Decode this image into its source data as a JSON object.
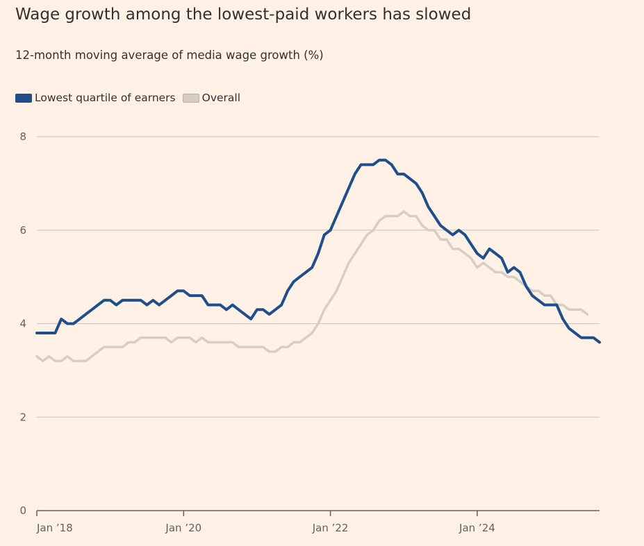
{
  "title": "Wage growth among the lowest-paid workers has slowed",
  "subtitle": "12-month moving average of media wage growth (%)",
  "colors": {
    "background": "#fff1e5",
    "lowest_quartile": "#1f4e8b",
    "overall": "#d6cdc4",
    "gridline": "#cdc3b9",
    "axis": "#66605c"
  },
  "chart_data": {
    "type": "line",
    "title": "Wage growth among the lowest-paid workers has slowed",
    "subtitle": "12-month moving average of media wage growth (%)",
    "xlabel": "",
    "ylabel": "",
    "ylim": [
      0,
      8
    ],
    "yticks": [
      0,
      2,
      4,
      6,
      8
    ],
    "xlim": [
      "2018-01",
      "2025-09"
    ],
    "xticks": [
      {
        "date": "2018-01",
        "label": "Jan ’18"
      },
      {
        "date": "2020-01",
        "label": "Jan ’20"
      },
      {
        "date": "2022-01",
        "label": "Jan ’22"
      },
      {
        "date": "2024-01",
        "label": "Jan ’24"
      }
    ],
    "grid": "horizontal",
    "legend": "top-left",
    "series": [
      {
        "name": "Lowest quartile of earners",
        "color": "#1f4e8b",
        "points": [
          [
            "2018-01",
            3.8
          ],
          [
            "2018-02",
            3.8
          ],
          [
            "2018-03",
            3.8
          ],
          [
            "2018-04",
            3.8
          ],
          [
            "2018-05",
            4.1
          ],
          [
            "2018-06",
            4.0
          ],
          [
            "2018-07",
            4.0
          ],
          [
            "2018-08",
            4.1
          ],
          [
            "2018-09",
            4.2
          ],
          [
            "2018-10",
            4.3
          ],
          [
            "2018-11",
            4.4
          ],
          [
            "2018-12",
            4.5
          ],
          [
            "2019-01",
            4.5
          ],
          [
            "2019-02",
            4.4
          ],
          [
            "2019-03",
            4.5
          ],
          [
            "2019-04",
            4.5
          ],
          [
            "2019-05",
            4.5
          ],
          [
            "2019-06",
            4.5
          ],
          [
            "2019-07",
            4.4
          ],
          [
            "2019-08",
            4.5
          ],
          [
            "2019-09",
            4.4
          ],
          [
            "2019-10",
            4.5
          ],
          [
            "2019-11",
            4.6
          ],
          [
            "2019-12",
            4.7
          ],
          [
            "2020-01",
            4.7
          ],
          [
            "2020-02",
            4.6
          ],
          [
            "2020-03",
            4.6
          ],
          [
            "2020-04",
            4.6
          ],
          [
            "2020-05",
            4.4
          ],
          [
            "2020-06",
            4.4
          ],
          [
            "2020-07",
            4.4
          ],
          [
            "2020-08",
            4.3
          ],
          [
            "2020-09",
            4.4
          ],
          [
            "2020-10",
            4.3
          ],
          [
            "2020-11",
            4.2
          ],
          [
            "2020-12",
            4.1
          ],
          [
            "2021-01",
            4.3
          ],
          [
            "2021-02",
            4.3
          ],
          [
            "2021-03",
            4.2
          ],
          [
            "2021-04",
            4.3
          ],
          [
            "2021-05",
            4.4
          ],
          [
            "2021-06",
            4.7
          ],
          [
            "2021-07",
            4.9
          ],
          [
            "2021-08",
            5.0
          ],
          [
            "2021-09",
            5.1
          ],
          [
            "2021-10",
            5.2
          ],
          [
            "2021-11",
            5.5
          ],
          [
            "2021-12",
            5.9
          ],
          [
            "2022-01",
            6.0
          ],
          [
            "2022-02",
            6.3
          ],
          [
            "2022-03",
            6.6
          ],
          [
            "2022-04",
            6.9
          ],
          [
            "2022-05",
            7.2
          ],
          [
            "2022-06",
            7.4
          ],
          [
            "2022-07",
            7.4
          ],
          [
            "2022-08",
            7.4
          ],
          [
            "2022-09",
            7.5
          ],
          [
            "2022-10",
            7.5
          ],
          [
            "2022-11",
            7.4
          ],
          [
            "2022-12",
            7.2
          ],
          [
            "2023-01",
            7.2
          ],
          [
            "2023-02",
            7.1
          ],
          [
            "2023-03",
            7.0
          ],
          [
            "2023-04",
            6.8
          ],
          [
            "2023-05",
            6.5
          ],
          [
            "2023-06",
            6.3
          ],
          [
            "2023-07",
            6.1
          ],
          [
            "2023-08",
            6.0
          ],
          [
            "2023-09",
            5.9
          ],
          [
            "2023-10",
            6.0
          ],
          [
            "2023-11",
            5.9
          ],
          [
            "2023-12",
            5.7
          ],
          [
            "2024-01",
            5.5
          ],
          [
            "2024-02",
            5.4
          ],
          [
            "2024-03",
            5.6
          ],
          [
            "2024-04",
            5.5
          ],
          [
            "2024-05",
            5.4
          ],
          [
            "2024-06",
            5.1
          ],
          [
            "2024-07",
            5.2
          ],
          [
            "2024-08",
            5.1
          ],
          [
            "2024-09",
            4.8
          ],
          [
            "2024-10",
            4.6
          ],
          [
            "2024-11",
            4.5
          ],
          [
            "2024-12",
            4.4
          ],
          [
            "2025-01",
            4.4
          ],
          [
            "2025-02",
            4.4
          ],
          [
            "2025-03",
            4.1
          ],
          [
            "2025-04",
            3.9
          ],
          [
            "2025-05",
            3.8
          ],
          [
            "2025-06",
            3.7
          ],
          [
            "2025-07",
            3.7
          ],
          [
            "2025-08",
            3.7
          ],
          [
            "2025-09",
            3.6
          ]
        ]
      },
      {
        "name": "Overall",
        "color": "#d6cdc4",
        "points": [
          [
            "2018-01",
            3.3
          ],
          [
            "2018-02",
            3.2
          ],
          [
            "2018-03",
            3.3
          ],
          [
            "2018-04",
            3.2
          ],
          [
            "2018-05",
            3.2
          ],
          [
            "2018-06",
            3.3
          ],
          [
            "2018-07",
            3.2
          ],
          [
            "2018-08",
            3.2
          ],
          [
            "2018-09",
            3.2
          ],
          [
            "2018-10",
            3.3
          ],
          [
            "2018-11",
            3.4
          ],
          [
            "2018-12",
            3.5
          ],
          [
            "2019-01",
            3.5
          ],
          [
            "2019-02",
            3.5
          ],
          [
            "2019-03",
            3.5
          ],
          [
            "2019-04",
            3.6
          ],
          [
            "2019-05",
            3.6
          ],
          [
            "2019-06",
            3.7
          ],
          [
            "2019-07",
            3.7
          ],
          [
            "2019-08",
            3.7
          ],
          [
            "2019-09",
            3.7
          ],
          [
            "2019-10",
            3.7
          ],
          [
            "2019-11",
            3.6
          ],
          [
            "2019-12",
            3.7
          ],
          [
            "2020-01",
            3.7
          ],
          [
            "2020-02",
            3.7
          ],
          [
            "2020-03",
            3.6
          ],
          [
            "2020-04",
            3.7
          ],
          [
            "2020-05",
            3.6
          ],
          [
            "2020-06",
            3.6
          ],
          [
            "2020-07",
            3.6
          ],
          [
            "2020-08",
            3.6
          ],
          [
            "2020-09",
            3.6
          ],
          [
            "2020-10",
            3.5
          ],
          [
            "2020-11",
            3.5
          ],
          [
            "2020-12",
            3.5
          ],
          [
            "2021-01",
            3.5
          ],
          [
            "2021-02",
            3.5
          ],
          [
            "2021-03",
            3.4
          ],
          [
            "2021-04",
            3.4
          ],
          [
            "2021-05",
            3.5
          ],
          [
            "2021-06",
            3.5
          ],
          [
            "2021-07",
            3.6
          ],
          [
            "2021-08",
            3.6
          ],
          [
            "2021-09",
            3.7
          ],
          [
            "2021-10",
            3.8
          ],
          [
            "2021-11",
            4.0
          ],
          [
            "2021-12",
            4.3
          ],
          [
            "2022-01",
            4.5
          ],
          [
            "2022-02",
            4.7
          ],
          [
            "2022-03",
            5.0
          ],
          [
            "2022-04",
            5.3
          ],
          [
            "2022-05",
            5.5
          ],
          [
            "2022-06",
            5.7
          ],
          [
            "2022-07",
            5.9
          ],
          [
            "2022-08",
            6.0
          ],
          [
            "2022-09",
            6.2
          ],
          [
            "2022-10",
            6.3
          ],
          [
            "2022-11",
            6.3
          ],
          [
            "2022-12",
            6.3
          ],
          [
            "2023-01",
            6.4
          ],
          [
            "2023-02",
            6.3
          ],
          [
            "2023-03",
            6.3
          ],
          [
            "2023-04",
            6.1
          ],
          [
            "2023-05",
            6.0
          ],
          [
            "2023-06",
            6.0
          ],
          [
            "2023-07",
            5.8
          ],
          [
            "2023-08",
            5.8
          ],
          [
            "2023-09",
            5.6
          ],
          [
            "2023-10",
            5.6
          ],
          [
            "2023-11",
            5.5
          ],
          [
            "2023-12",
            5.4
          ],
          [
            "2024-01",
            5.2
          ],
          [
            "2024-02",
            5.3
          ],
          [
            "2024-03",
            5.2
          ],
          [
            "2024-04",
            5.1
          ],
          [
            "2024-05",
            5.1
          ],
          [
            "2024-06",
            5.0
          ],
          [
            "2024-07",
            5.0
          ],
          [
            "2024-08",
            4.9
          ],
          [
            "2024-09",
            4.8
          ],
          [
            "2024-10",
            4.7
          ],
          [
            "2024-11",
            4.7
          ],
          [
            "2024-12",
            4.6
          ],
          [
            "2025-01",
            4.6
          ],
          [
            "2025-02",
            4.4
          ],
          [
            "2025-03",
            4.4
          ],
          [
            "2025-04",
            4.3
          ],
          [
            "2025-05",
            4.3
          ],
          [
            "2025-06",
            4.3
          ],
          [
            "2025-07",
            4.2
          ]
        ]
      }
    ]
  }
}
